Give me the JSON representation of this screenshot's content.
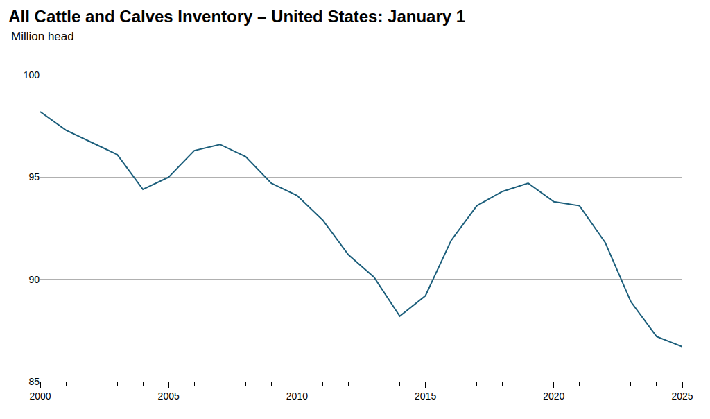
{
  "chart_data": {
    "type": "line",
    "title": "All Cattle and Calves Inventory – United States: January 1",
    "subtitle": "Million head",
    "x": [
      2000,
      2001,
      2002,
      2003,
      2004,
      2005,
      2006,
      2007,
      2008,
      2009,
      2010,
      2011,
      2012,
      2013,
      2014,
      2015,
      2016,
      2017,
      2018,
      2019,
      2020,
      2021,
      2022,
      2023,
      2024,
      2025
    ],
    "values": [
      98.2,
      97.3,
      96.7,
      96.1,
      94.4,
      95.0,
      96.3,
      96.6,
      96.0,
      94.7,
      94.1,
      92.9,
      91.2,
      90.1,
      88.2,
      89.2,
      91.9,
      93.6,
      94.3,
      94.7,
      93.8,
      93.6,
      91.8,
      88.9,
      87.2,
      86.7
    ],
    "color": "#1b5e7b",
    "xlim": [
      2000,
      2025
    ],
    "xticks": [
      2000,
      2005,
      2010,
      2015,
      2020,
      2025
    ],
    "ylim": [
      85,
      100
    ],
    "yticks": [
      85,
      90,
      95,
      100
    ],
    "grid": true
  }
}
